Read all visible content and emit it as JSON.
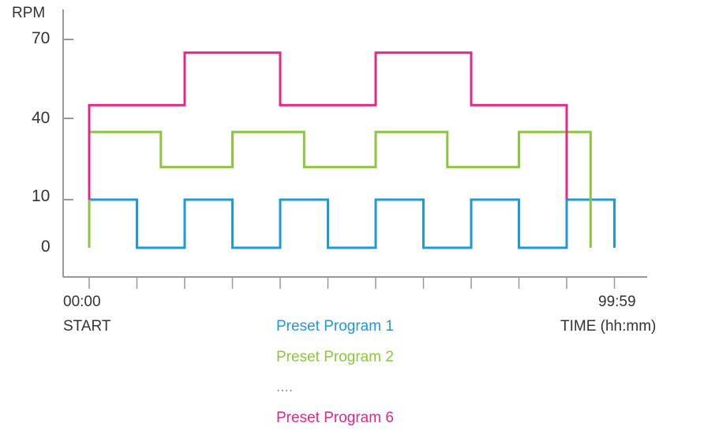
{
  "chart_data": {
    "type": "line",
    "step": true,
    "ylabel": "RPM",
    "yticks": [
      0,
      10,
      40,
      70
    ],
    "ylim": [
      -5,
      75
    ],
    "xtick_count": 12,
    "x_start_label": "00:00",
    "x_start_sublabel": "START",
    "x_end_label": "99:59",
    "xlabel": "TIME (hh:mm)",
    "series": [
      {
        "name": "Preset Program 1",
        "color": "#1e9ad6",
        "x": [
          0,
          0,
          1,
          1,
          2,
          2,
          3,
          3,
          4,
          4,
          5,
          5,
          6,
          6,
          7,
          7,
          8,
          8,
          9,
          9,
          10,
          10,
          11,
          11
        ],
        "y": [
          0,
          10,
          10,
          0,
          0,
          10,
          10,
          0,
          0,
          10,
          10,
          0,
          0,
          10,
          10,
          0,
          0,
          10,
          10,
          0,
          0,
          10,
          10,
          0
        ]
      },
      {
        "name": "Preset Program 2",
        "color": "#8cc63f",
        "x": [
          0,
          0,
          1.5,
          1.5,
          3,
          3,
          4.5,
          4.5,
          6,
          6,
          7.5,
          7.5,
          9,
          9,
          10.5,
          10.5
        ],
        "y": [
          0,
          35,
          35,
          22,
          22,
          35,
          35,
          22,
          22,
          35,
          35,
          22,
          22,
          35,
          35,
          0
        ]
      },
      {
        "name": "Preset Program 6",
        "color": "#e0288a",
        "x": [
          0,
          0,
          2,
          2,
          4,
          4,
          6,
          6,
          8,
          8,
          10,
          10
        ],
        "y": [
          10,
          45,
          45,
          65,
          65,
          45,
          45,
          65,
          65,
          45,
          45,
          10
        ]
      }
    ],
    "legend": [
      "Preset Program 1",
      "Preset Program 2",
      "....",
      "Preset Program 6"
    ],
    "axis_color": "#999999"
  }
}
